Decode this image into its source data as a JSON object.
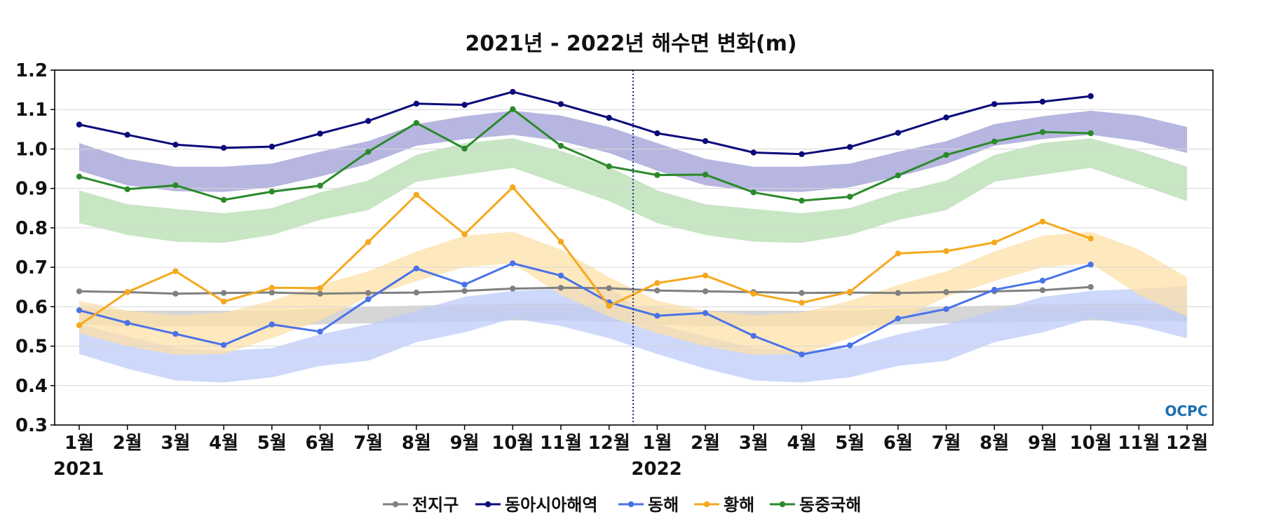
{
  "chart_data": {
    "type": "line",
    "title": "2021년 - 2022년 해수면 변화(m)",
    "xlabel": "",
    "ylabel": "",
    "ylim": [
      0.3,
      1.2
    ],
    "yticks": [
      "0.3",
      "0.4",
      "0.5",
      "0.6",
      "0.7",
      "0.8",
      "0.9",
      "1.0",
      "1.1",
      "1.2"
    ],
    "categories": [
      "1월",
      "2월",
      "3월",
      "4월",
      "5월",
      "6월",
      "7월",
      "8월",
      "9월",
      "10월",
      "11월",
      "12월",
      "1월",
      "2월",
      "3월",
      "4월",
      "5월",
      "6월",
      "7월",
      "8월",
      "9월",
      "10월",
      "11월",
      "12월"
    ],
    "year_labels": [
      {
        "label": "2021",
        "index": 0
      },
      {
        "label": "2022",
        "index": 12
      }
    ],
    "year_divider_between": [
      11,
      12
    ],
    "grid": true,
    "legend_position": "bottom",
    "logo": "OCPC",
    "series": [
      {
        "name": "전지구",
        "color": "#808080",
        "values": [
          0.639,
          0.637,
          0.633,
          0.635,
          0.636,
          0.633,
          0.635,
          0.636,
          0.64,
          0.646,
          0.648,
          0.647,
          0.641,
          0.639,
          0.637,
          0.635,
          0.636,
          0.635,
          0.637,
          0.639,
          0.642,
          0.65,
          null,
          null
        ]
      },
      {
        "name": "동아시아해역",
        "color": "#0a0a7a",
        "values": [
          1.062,
          1.036,
          1.011,
          1.003,
          1.006,
          1.039,
          1.071,
          1.115,
          1.112,
          1.145,
          1.114,
          1.079,
          1.04,
          1.02,
          0.991,
          0.987,
          1.005,
          1.041,
          1.08,
          1.114,
          1.12,
          1.134,
          null,
          null
        ]
      },
      {
        "name": "동해",
        "color": "#4a72e8",
        "values": [
          0.591,
          0.559,
          0.531,
          0.503,
          0.555,
          0.537,
          0.619,
          0.697,
          0.656,
          0.71,
          0.679,
          0.611,
          0.577,
          0.584,
          0.526,
          0.479,
          0.502,
          0.57,
          0.594,
          0.643,
          0.666,
          0.707,
          null,
          null
        ]
      },
      {
        "name": "황해",
        "color": "#f5a81e",
        "values": [
          0.553,
          0.637,
          0.69,
          0.613,
          0.648,
          0.647,
          0.764,
          0.884,
          0.784,
          0.903,
          0.765,
          0.602,
          0.66,
          0.679,
          0.633,
          0.61,
          0.638,
          0.735,
          0.741,
          0.763,
          0.816,
          0.773,
          null,
          null
        ]
      },
      {
        "name": "동중국해",
        "color": "#2a8a2a",
        "values": [
          0.93,
          0.898,
          0.908,
          0.871,
          0.892,
          0.907,
          0.993,
          1.066,
          1.001,
          1.101,
          1.008,
          0.956,
          0.934,
          0.935,
          0.89,
          0.869,
          0.879,
          0.933,
          0.985,
          1.019,
          1.043,
          1.04,
          null,
          null
        ]
      }
    ],
    "climatology_bands": [
      {
        "series": "전지구",
        "color": "#c8c8c8",
        "upper": [
          0.598,
          0.59,
          0.59,
          0.59,
          0.59,
          0.595,
          0.6,
          0.603,
          0.605,
          0.608,
          0.608,
          0.605,
          0.598,
          0.59,
          0.59,
          0.59,
          0.59,
          0.595,
          0.6,
          0.603,
          0.605,
          0.608,
          0.608,
          0.605
        ],
        "lower": [
          0.555,
          0.55,
          0.55,
          0.55,
          0.55,
          0.555,
          0.558,
          0.56,
          0.562,
          0.565,
          0.565,
          0.562,
          0.555,
          0.55,
          0.55,
          0.55,
          0.55,
          0.555,
          0.558,
          0.56,
          0.562,
          0.565,
          0.565,
          0.562
        ]
      },
      {
        "series": "동아시아해역",
        "color": "#9e9ed6",
        "upper": [
          1.015,
          0.975,
          0.955,
          0.955,
          0.963,
          0.993,
          1.02,
          1.063,
          1.083,
          1.097,
          1.085,
          1.056,
          1.015,
          0.975,
          0.955,
          0.955,
          0.963,
          0.993,
          1.02,
          1.063,
          1.083,
          1.097,
          1.085,
          1.056
        ],
        "lower": [
          0.945,
          0.908,
          0.893,
          0.891,
          0.903,
          0.93,
          0.962,
          1.008,
          1.025,
          1.036,
          1.02,
          0.99,
          0.945,
          0.908,
          0.893,
          0.891,
          0.903,
          0.93,
          0.962,
          1.008,
          1.025,
          1.036,
          1.02,
          0.99
        ]
      },
      {
        "series": "동해",
        "color": "#bccbfa",
        "upper": [
          0.555,
          0.525,
          0.495,
          0.488,
          0.495,
          0.53,
          0.555,
          0.59,
          0.625,
          0.64,
          0.645,
          0.652,
          0.555,
          0.525,
          0.495,
          0.488,
          0.495,
          0.53,
          0.555,
          0.59,
          0.625,
          0.64,
          0.645,
          0.652
        ],
        "lower": [
          0.48,
          0.443,
          0.413,
          0.408,
          0.421,
          0.45,
          0.463,
          0.51,
          0.535,
          0.57,
          0.551,
          0.52,
          0.48,
          0.443,
          0.413,
          0.408,
          0.421,
          0.45,
          0.463,
          0.51,
          0.535,
          0.57,
          0.551,
          0.52
        ]
      },
      {
        "series": "황해",
        "color": "#fde0a8",
        "upper": [
          0.615,
          0.59,
          0.578,
          0.585,
          0.615,
          0.655,
          0.69,
          0.74,
          0.78,
          0.79,
          0.745,
          0.675,
          0.615,
          0.59,
          0.578,
          0.585,
          0.615,
          0.655,
          0.69,
          0.74,
          0.78,
          0.79,
          0.745,
          0.675
        ],
        "lower": [
          0.533,
          0.5,
          0.478,
          0.48,
          0.52,
          0.565,
          0.625,
          0.665,
          0.7,
          0.71,
          0.63,
          0.575,
          0.533,
          0.5,
          0.478,
          0.48,
          0.52,
          0.565,
          0.625,
          0.665,
          0.7,
          0.71,
          0.63,
          0.575
        ]
      },
      {
        "series": "동중국해",
        "color": "#b6dcb0",
        "upper": [
          0.895,
          0.86,
          0.848,
          0.837,
          0.85,
          0.89,
          0.92,
          0.985,
          1.015,
          1.027,
          0.995,
          0.955,
          0.895,
          0.86,
          0.848,
          0.837,
          0.85,
          0.89,
          0.92,
          0.985,
          1.015,
          1.027,
          0.995,
          0.955
        ],
        "lower": [
          0.812,
          0.782,
          0.765,
          0.762,
          0.782,
          0.82,
          0.845,
          0.917,
          0.935,
          0.952,
          0.91,
          0.868,
          0.812,
          0.782,
          0.765,
          0.762,
          0.782,
          0.82,
          0.845,
          0.917,
          0.935,
          0.952,
          0.91,
          0.868
        ]
      }
    ]
  }
}
